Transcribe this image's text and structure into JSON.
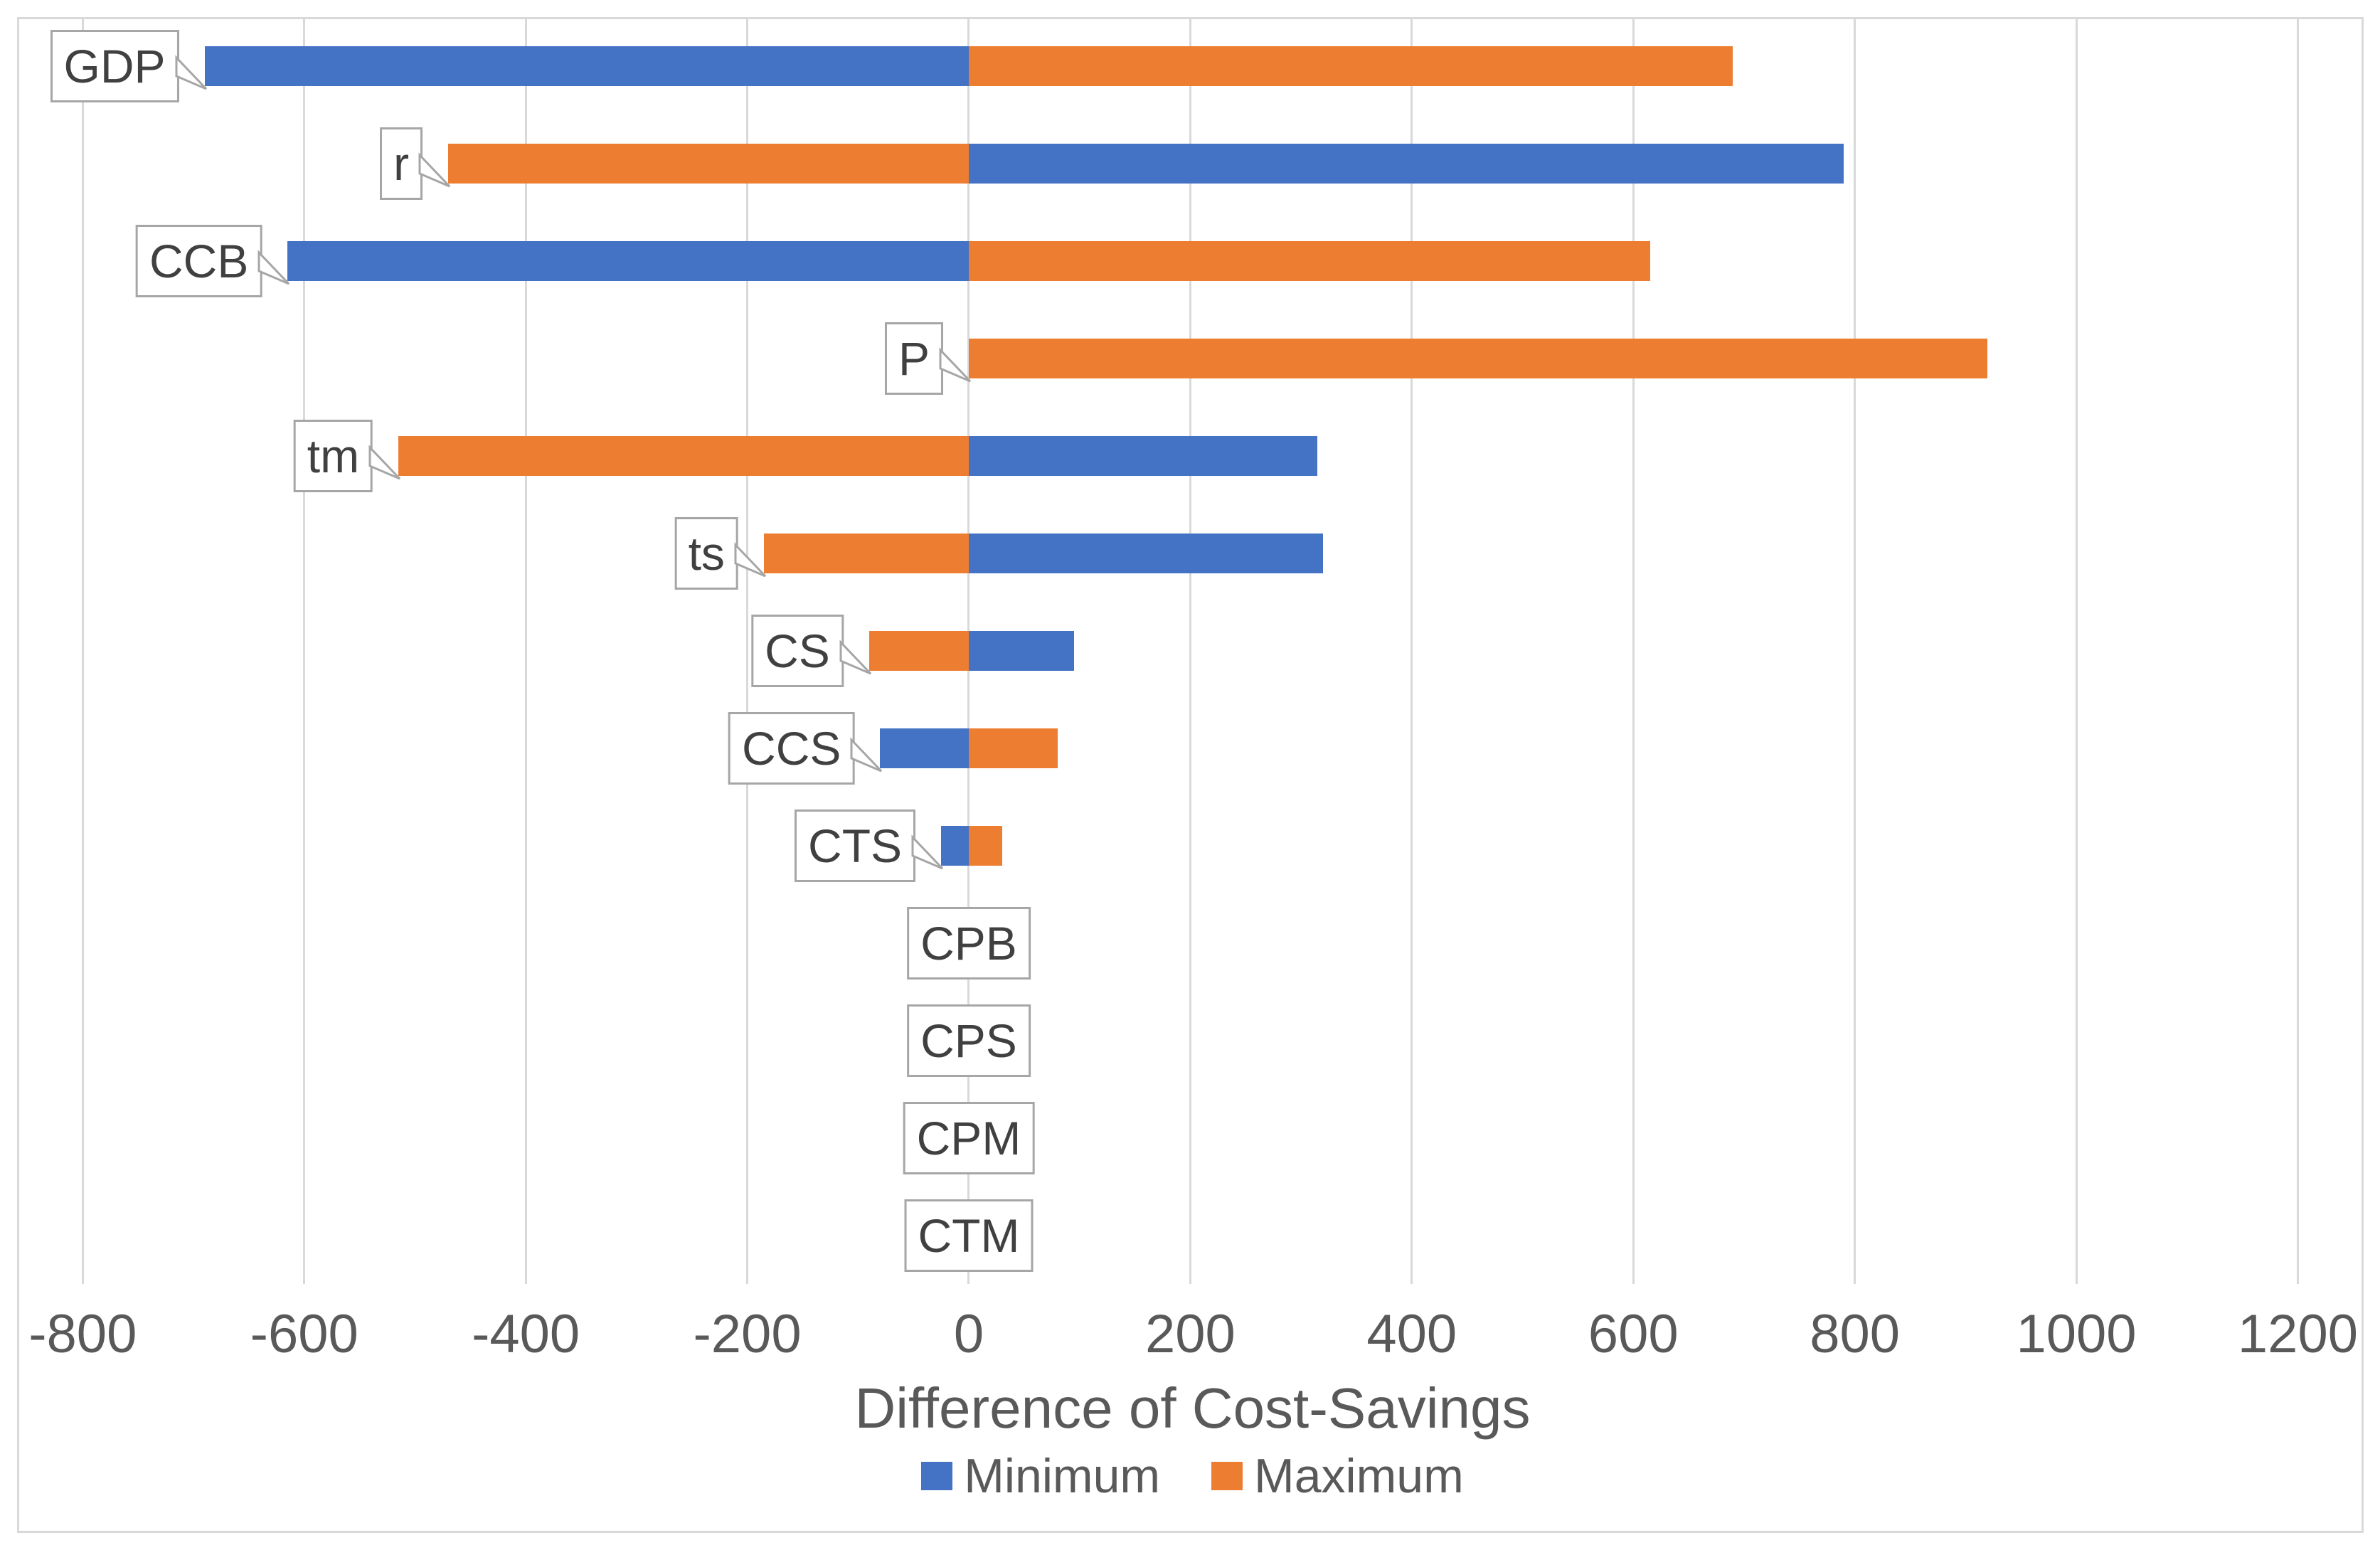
{
  "chart_data": {
    "type": "bar",
    "orientation": "horizontal",
    "subtype": "tornado",
    "title": "",
    "xlabel": "Difference of Cost-Savings",
    "ylabel": "",
    "categories": [
      "GDP",
      "r",
      "CCB",
      "P",
      "tm",
      "ts",
      "CS",
      "CCS",
      "CTS",
      "CPB",
      "CPS",
      "CPM",
      "CTM"
    ],
    "series": [
      {
        "name": "Minimum",
        "color": "#4472C4",
        "values": [
          -690,
          790,
          -615,
          0,
          315,
          320,
          95,
          -80,
          -25,
          0,
          0,
          0,
          0
        ]
      },
      {
        "name": "Maximum",
        "color": "#ED7D31",
        "values": [
          690,
          -470,
          615,
          920,
          -515,
          -185,
          -90,
          80,
          30,
          0,
          0,
          0,
          0
        ]
      }
    ],
    "x_ticks": [
      -800,
      -600,
      -400,
      -200,
      0,
      200,
      400,
      600,
      800,
      1000,
      1200
    ],
    "x_tick_labels": [
      "-800",
      "-600",
      "-400",
      "-200",
      "0",
      "200",
      "400",
      "600",
      "800",
      "1000",
      "1200"
    ],
    "xlim": [
      -858,
      1262
    ],
    "grid": "vertical",
    "legend_position": "bottom",
    "bar_base": 0
  },
  "legend": {
    "minimum_label": "Minimum",
    "maximum_label": "Maximum"
  },
  "colors": {
    "minimum": "#4472C4",
    "maximum": "#ED7D31",
    "gridline": "#D9D9D9",
    "chart_border": "#D9D9D9",
    "tick_text": "#595959",
    "axis_title_text": "#595959",
    "legend_text": "#595959",
    "category_label_text": "#404040",
    "category_label_border": "#A6A6A6",
    "background": "#FFFFFF"
  }
}
